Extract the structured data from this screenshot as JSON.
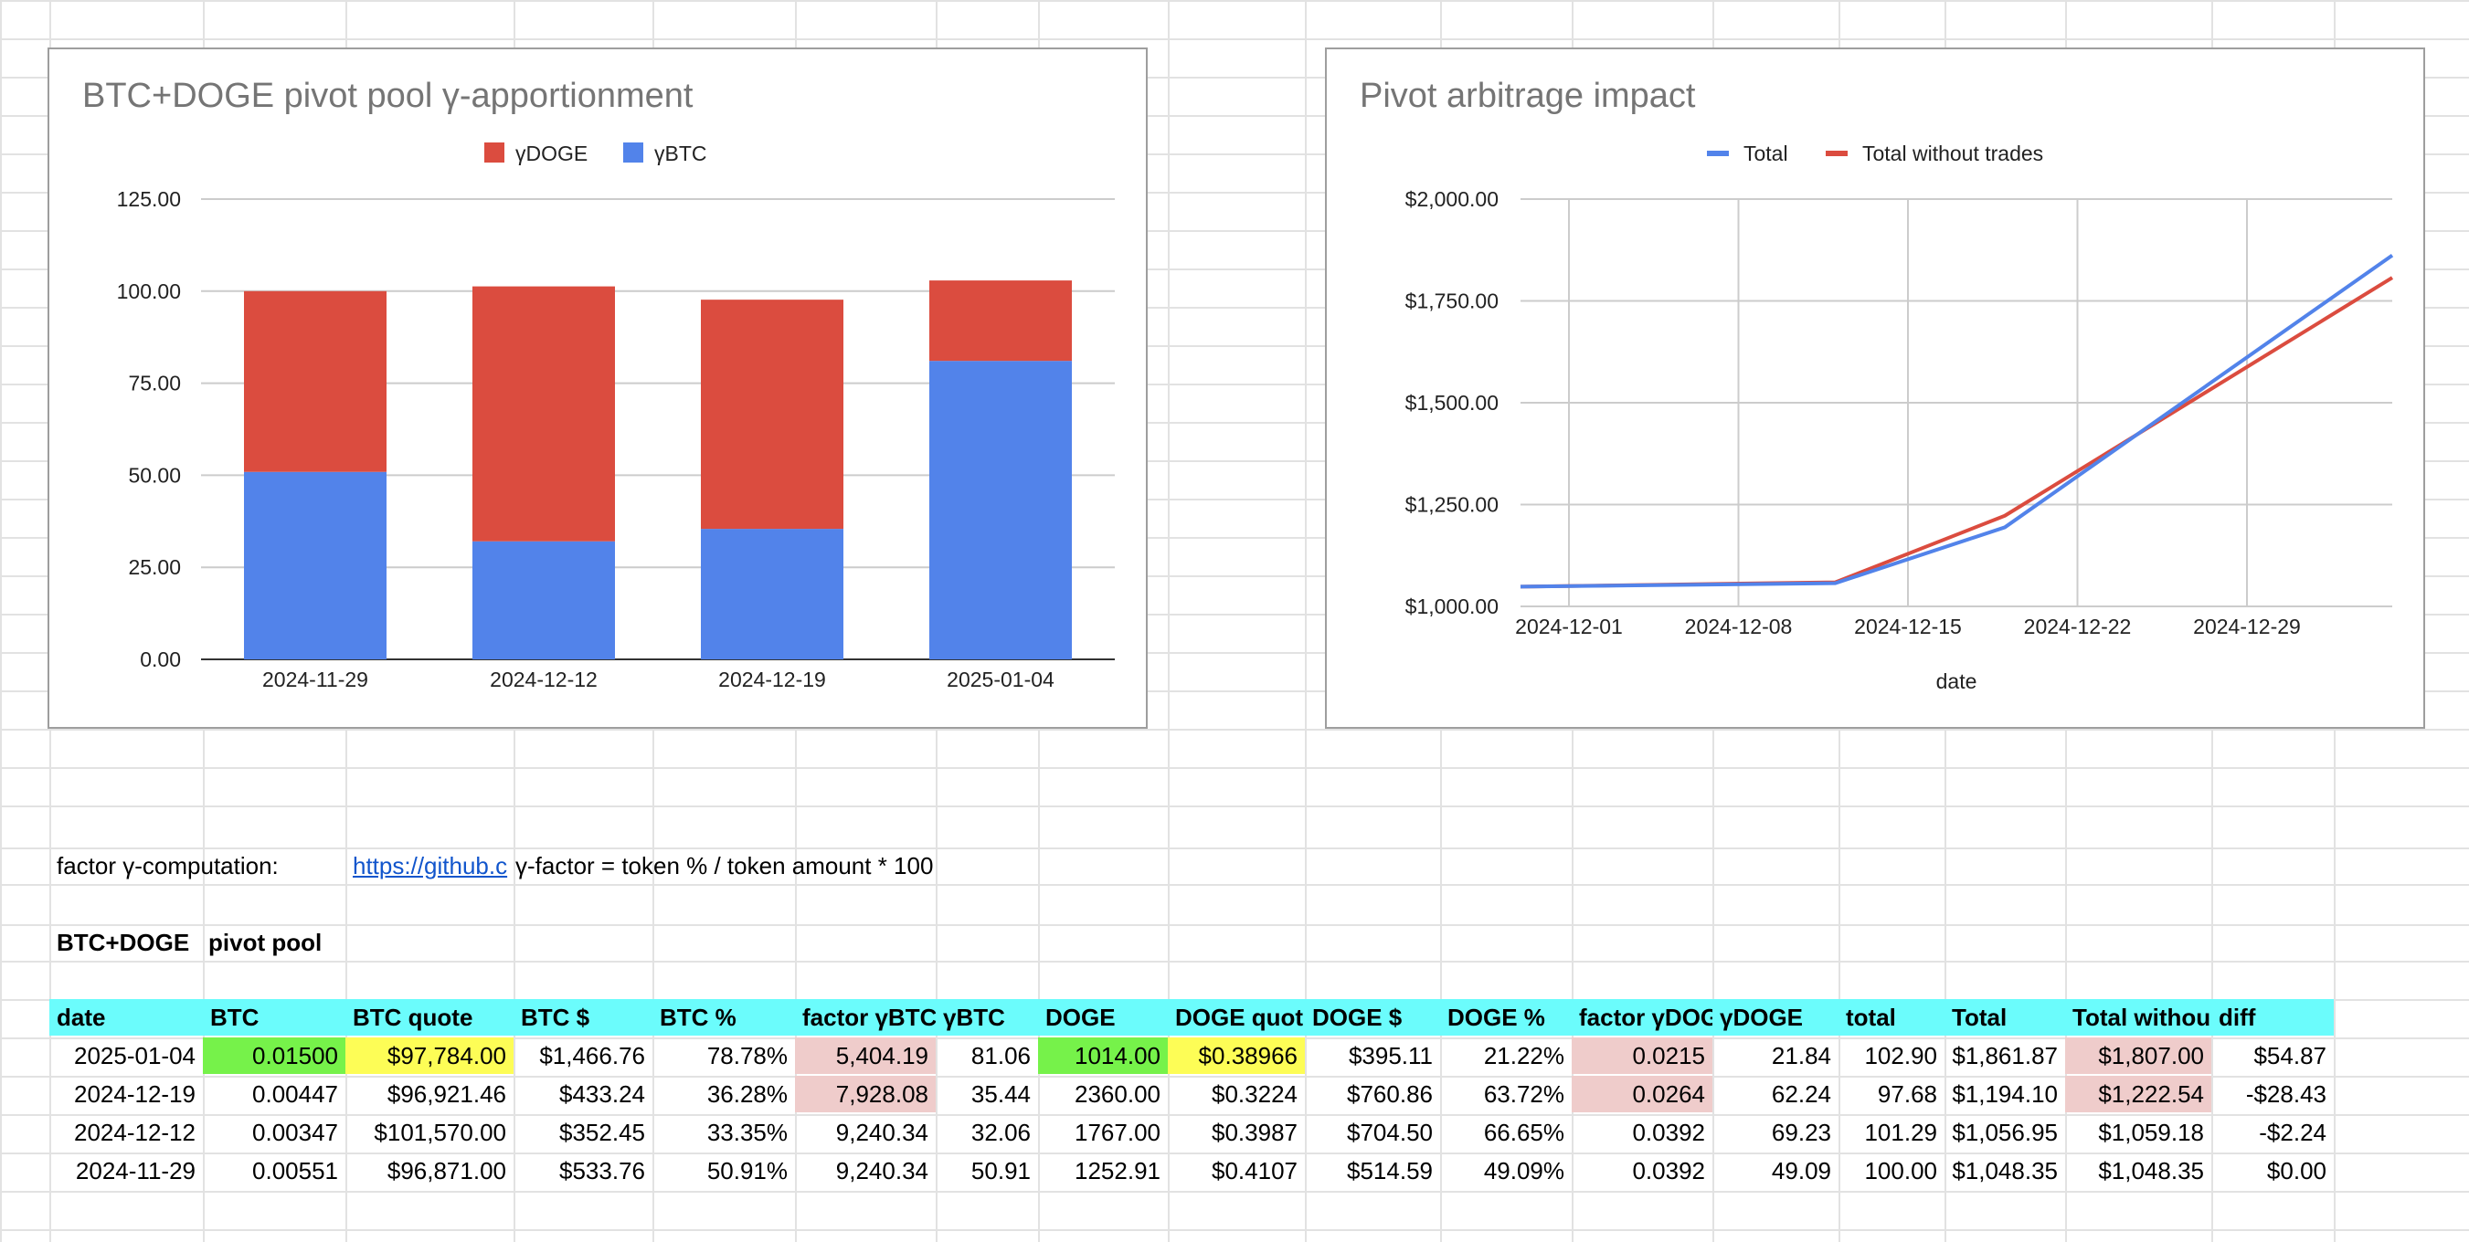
{
  "colors": {
    "btc_series": "#5283ea",
    "doge_series": "#db4c3f",
    "header_fill": "#6bfcfc",
    "green_fill": "#76f24a",
    "yellow_fill": "#fdfd56",
    "pink_fill": "#efcccb"
  },
  "chart_data": [
    {
      "type": "bar",
      "stacked": true,
      "title": "BTC+DOGE pivot pool γ-apportionment",
      "categories": [
        "2024-11-29",
        "2024-12-12",
        "2024-12-19",
        "2025-01-04"
      ],
      "series": [
        {
          "name": "γBTC",
          "values": [
            50.91,
            32.06,
            35.44,
            81.06
          ],
          "color": "#5283ea"
        },
        {
          "name": "γDOGE",
          "values": [
            49.09,
            69.23,
            62.24,
            21.84
          ],
          "color": "#db4c3f"
        }
      ],
      "legend_order": [
        "γDOGE",
        "γBTC"
      ],
      "legend_position": "top",
      "ylim": [
        0,
        125
      ],
      "yticks": [
        "0.00",
        "25.00",
        "50.00",
        "75.00",
        "100.00",
        "125.00"
      ],
      "grid": true
    },
    {
      "type": "line",
      "title": "Pivot arbitrage impact",
      "xlabel": "date",
      "x": [
        "2024-11-29",
        "2024-12-12",
        "2024-12-19",
        "2025-01-04"
      ],
      "xlim": [
        "2024-11-29",
        "2025-01-04"
      ],
      "xticks": [
        "2024-12-01",
        "2024-12-08",
        "2024-12-15",
        "2024-12-22",
        "2024-12-29"
      ],
      "series": [
        {
          "name": "Total",
          "values": [
            1048.35,
            1056.95,
            1194.1,
            1861.87
          ],
          "color": "#5283ea"
        },
        {
          "name": "Total without trades",
          "values": [
            1048.35,
            1059.18,
            1222.54,
            1807.0
          ],
          "color": "#db4c3f"
        }
      ],
      "legend_position": "top",
      "ylim": [
        1000,
        2000
      ],
      "yticks": [
        "$1,000.00",
        "$1,250.00",
        "$1,500.00",
        "$1,750.00",
        "$2,000.00"
      ],
      "grid": true
    }
  ],
  "info": {
    "factor_label": "factor γ-computation:",
    "link_text": "https://github.c",
    "formula": "γ-factor = token % / token amount * 100",
    "pool_label_1": "BTC+DOGE",
    "pool_label_2": "pivot pool"
  },
  "table": {
    "headers": [
      "date",
      "BTC",
      "BTC quote",
      "BTC $",
      "BTC %",
      "factor γBTC",
      "γBTC",
      "DOGE",
      "DOGE quot",
      "DOGE $",
      "DOGE %",
      "factor γDOG",
      "γDOGE",
      "total",
      "Total",
      "Total withou",
      "diff"
    ],
    "rows": [
      [
        "2025-01-04",
        "0.01500",
        "$97,784.00",
        "$1,466.76",
        "78.78%",
        "5,404.19",
        "81.06",
        "1014.00",
        "$0.38966",
        "$395.11",
        "21.22%",
        "0.0215",
        "21.84",
        "102.90",
        "$1,861.87",
        "$1,807.00",
        "$54.87"
      ],
      [
        "2024-12-19",
        "0.00447",
        "$96,921.46",
        "$433.24",
        "36.28%",
        "7,928.08",
        "35.44",
        "2360.00",
        "$0.3224",
        "$760.86",
        "63.72%",
        "0.0264",
        "62.24",
        "97.68",
        "$1,194.10",
        "$1,222.54",
        "-$28.43"
      ],
      [
        "2024-12-12",
        "0.00347",
        "$101,570.00",
        "$352.45",
        "33.35%",
        "9,240.34",
        "32.06",
        "1767.00",
        "$0.3987",
        "$704.50",
        "66.65%",
        "0.0392",
        "69.23",
        "101.29",
        "$1,056.95",
        "$1,059.18",
        "-$2.24"
      ],
      [
        "2024-11-29",
        "0.00551",
        "$96,871.00",
        "$533.76",
        "50.91%",
        "9,240.34",
        "50.91",
        "1252.91",
        "$0.4107",
        "$514.59",
        "49.09%",
        "0.0392",
        "49.09",
        "100.00",
        "$1,048.35",
        "$1,048.35",
        "$0.00"
      ]
    ]
  }
}
